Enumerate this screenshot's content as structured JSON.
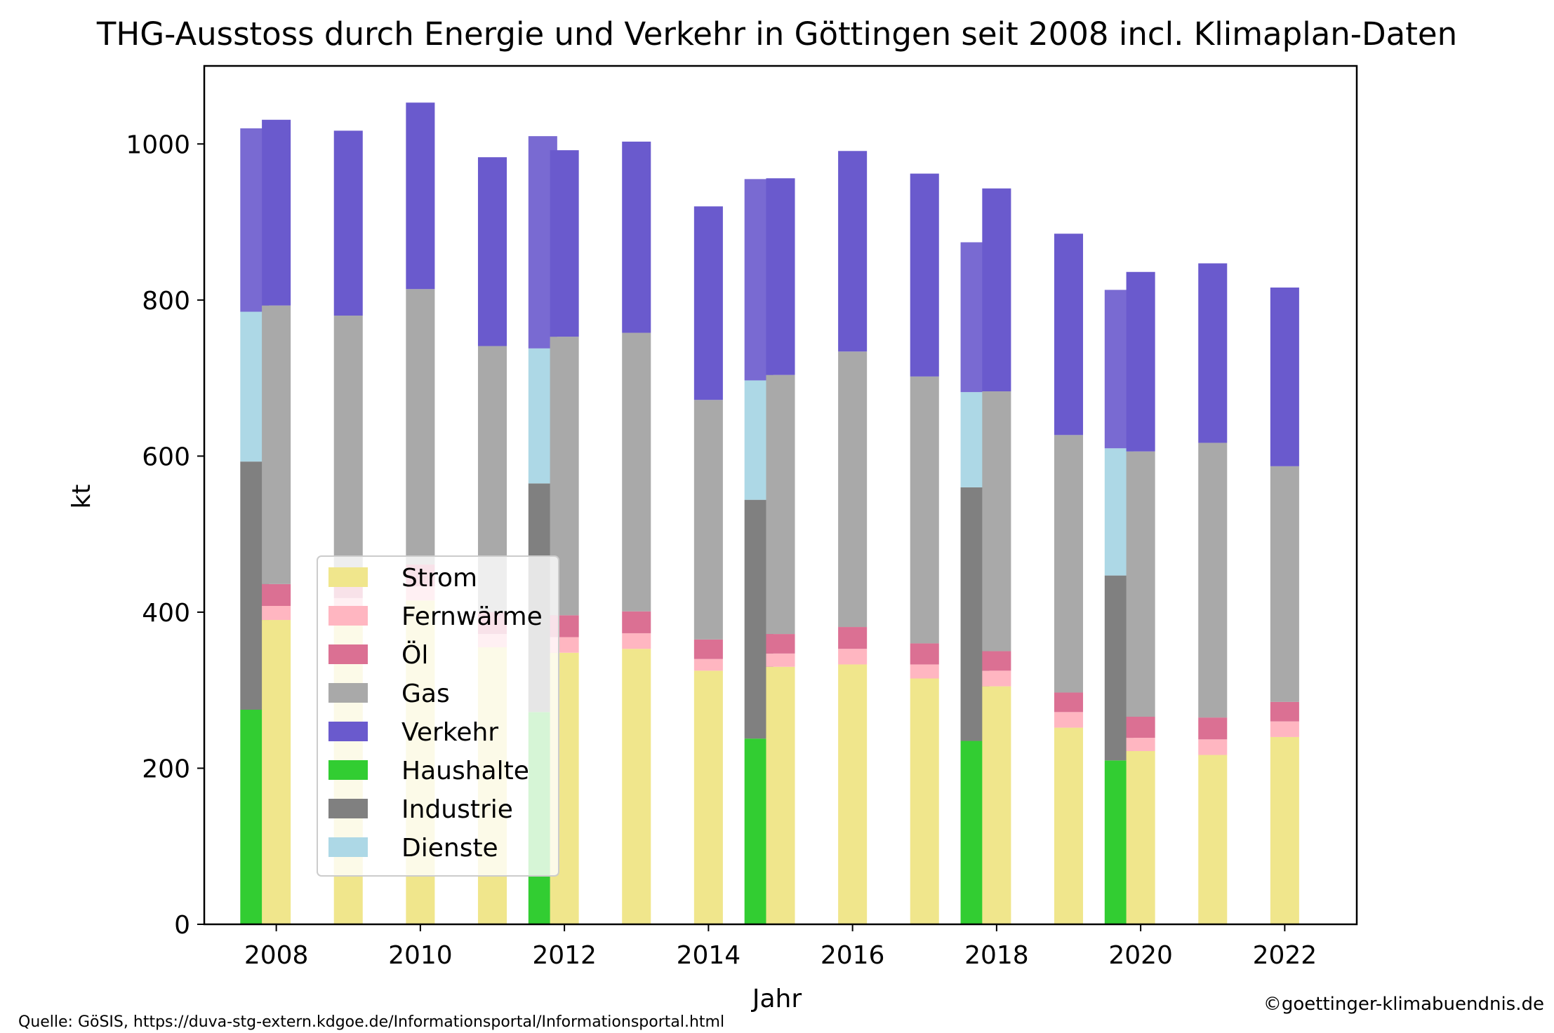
{
  "chart_data": {
    "type": "bar",
    "title": "THG-Ausstoss durch Energie und Verkehr in Göttingen seit 2008 incl. Klimaplan-Daten",
    "xlabel": "Jahr",
    "ylabel": "kt",
    "xlim": [
      2007.0,
      2023.0
    ],
    "ylim": [
      0,
      1100
    ],
    "xticks": [
      2008,
      2010,
      2012,
      2014,
      2016,
      2018,
      2020,
      2022
    ],
    "yticks": [
      0,
      200,
      400,
      600,
      800,
      1000
    ],
    "grid": false,
    "legend_position": "center-left",
    "legend": [
      {
        "label": "Strom",
        "color": "#F0E68C"
      },
      {
        "label": "Fernwärme",
        "color": "#FFB6C1"
      },
      {
        "label": "Öl",
        "color": "#DB7093"
      },
      {
        "label": "Gas",
        "color": "#A9A9A9"
      },
      {
        "label": "Verkehr",
        "color": "#6A5ACD"
      },
      {
        "label": "Haushalte",
        "color": "#32CD32"
      },
      {
        "label": "Industrie",
        "color": "#808080"
      },
      {
        "label": "Dienste",
        "color": "#ADD8E6"
      }
    ],
    "energy_sources": {
      "x": [
        2008,
        2009,
        2010,
        2011,
        2012,
        2013,
        2014,
        2015,
        2016,
        2017,
        2018,
        2019,
        2020,
        2021,
        2022
      ],
      "series": [
        {
          "name": "Strom",
          "color": "#F0E68C",
          "values": [
            390,
            400,
            415,
            355,
            348,
            353,
            325,
            330,
            333,
            315,
            305,
            252,
            222,
            217,
            240
          ]
        },
        {
          "name": "Fernwärme",
          "color": "#FFB6C1",
          "values": [
            18,
            18,
            18,
            17,
            20,
            20,
            15,
            17,
            20,
            18,
            20,
            20,
            17,
            20,
            20
          ]
        },
        {
          "name": "Öl",
          "color": "#DB7093",
          "values": [
            28,
            28,
            28,
            28,
            28,
            28,
            25,
            25,
            28,
            27,
            25,
            25,
            27,
            28,
            25
          ]
        },
        {
          "name": "Gas",
          "color": "#A9A9A9",
          "values": [
            357,
            334,
            353,
            341,
            357,
            357,
            307,
            332,
            353,
            342,
            333,
            330,
            340,
            352,
            302
          ]
        },
        {
          "name": "Verkehr",
          "color": "#6A5ACD",
          "values": [
            238,
            237,
            239,
            242,
            239,
            245,
            248,
            252,
            257,
            260,
            260,
            258,
            230,
            230,
            229
          ]
        }
      ]
    },
    "sectors_klimaplan": {
      "x": [
        2008,
        2012,
        2015,
        2018,
        2020
      ],
      "series": [
        {
          "name": "Haushalte",
          "color": "#32CD32",
          "values": [
            275,
            272,
            238,
            235,
            210
          ]
        },
        {
          "name": "Industrie",
          "color": "#808080",
          "values": [
            318,
            293,
            306,
            325,
            237
          ]
        },
        {
          "name": "Dienste",
          "color": "#ADD8E6",
          "values": [
            192,
            173,
            153,
            122,
            163
          ]
        },
        {
          "name": "Verkehr",
          "color": "#6A5ACD",
          "values": [
            235,
            272,
            258,
            192,
            203
          ]
        }
      ]
    }
  },
  "footer": {
    "source": "Quelle: GöSIS, https://duva-stg-extern.kdgoe.de/Informationsportal/Informationsportal.html",
    "copyright": "©goettinger-klimabuendnis.de"
  }
}
